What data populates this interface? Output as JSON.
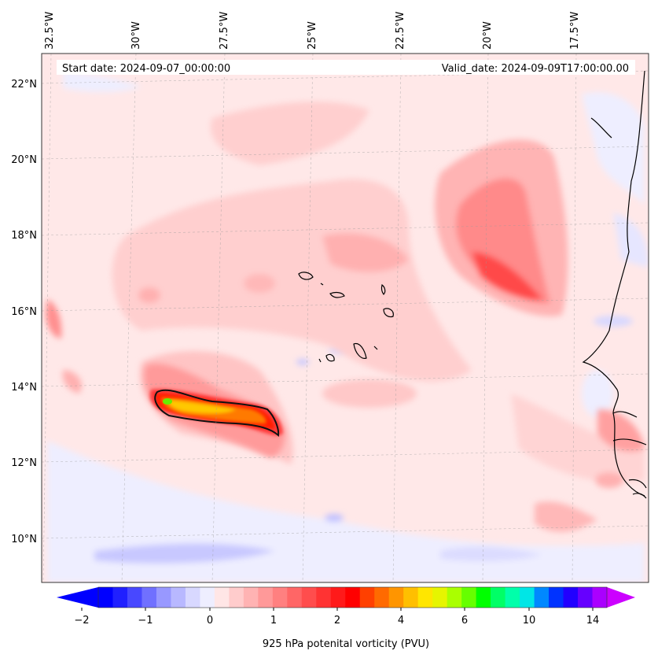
{
  "header": {
    "start_label": "Start date: 2024-09-07_00:00:00",
    "valid_label": "Valid_date: 2024-09-09T17:00:00.00"
  },
  "lon_labels": [
    "32.5°W",
    "30°W",
    "27.5°W",
    "25°W",
    "22.5°W",
    "20°W",
    "17.5°W"
  ],
  "lat_labels": [
    "22°N",
    "20°N",
    "18°N",
    "16°N",
    "14°N",
    "12°N",
    "10°N"
  ],
  "colorbar": {
    "title": "925 hPa potenital vorticity (PVU)",
    "tick_labels": [
      "−2",
      "−1",
      "0",
      "1",
      "2",
      "4",
      "6",
      "10",
      "14"
    ],
    "colors": [
      "#0000ff",
      "#2020ff",
      "#4848ff",
      "#7070ff",
      "#9898ff",
      "#b8b8ff",
      "#d8d8ff",
      "#eeeeff",
      "#ffe6e6",
      "#ffcccc",
      "#ffb3b3",
      "#ff9999",
      "#ff8080",
      "#ff6666",
      "#ff4d4d",
      "#ff3333",
      "#ff1a1a",
      "#ff0000",
      "#ff4000",
      "#ff6a00",
      "#ff9500",
      "#ffbf00",
      "#ffe600",
      "#e6f500",
      "#aaff00",
      "#66ff00",
      "#00ff00",
      "#00ff66",
      "#00ffaa",
      "#00e6e6",
      "#0088ff",
      "#0033ff",
      "#2200ff",
      "#6600ff",
      "#aa00ff"
    ],
    "under_color": "#0000ff",
    "over_color": "#cc00ff"
  }
}
